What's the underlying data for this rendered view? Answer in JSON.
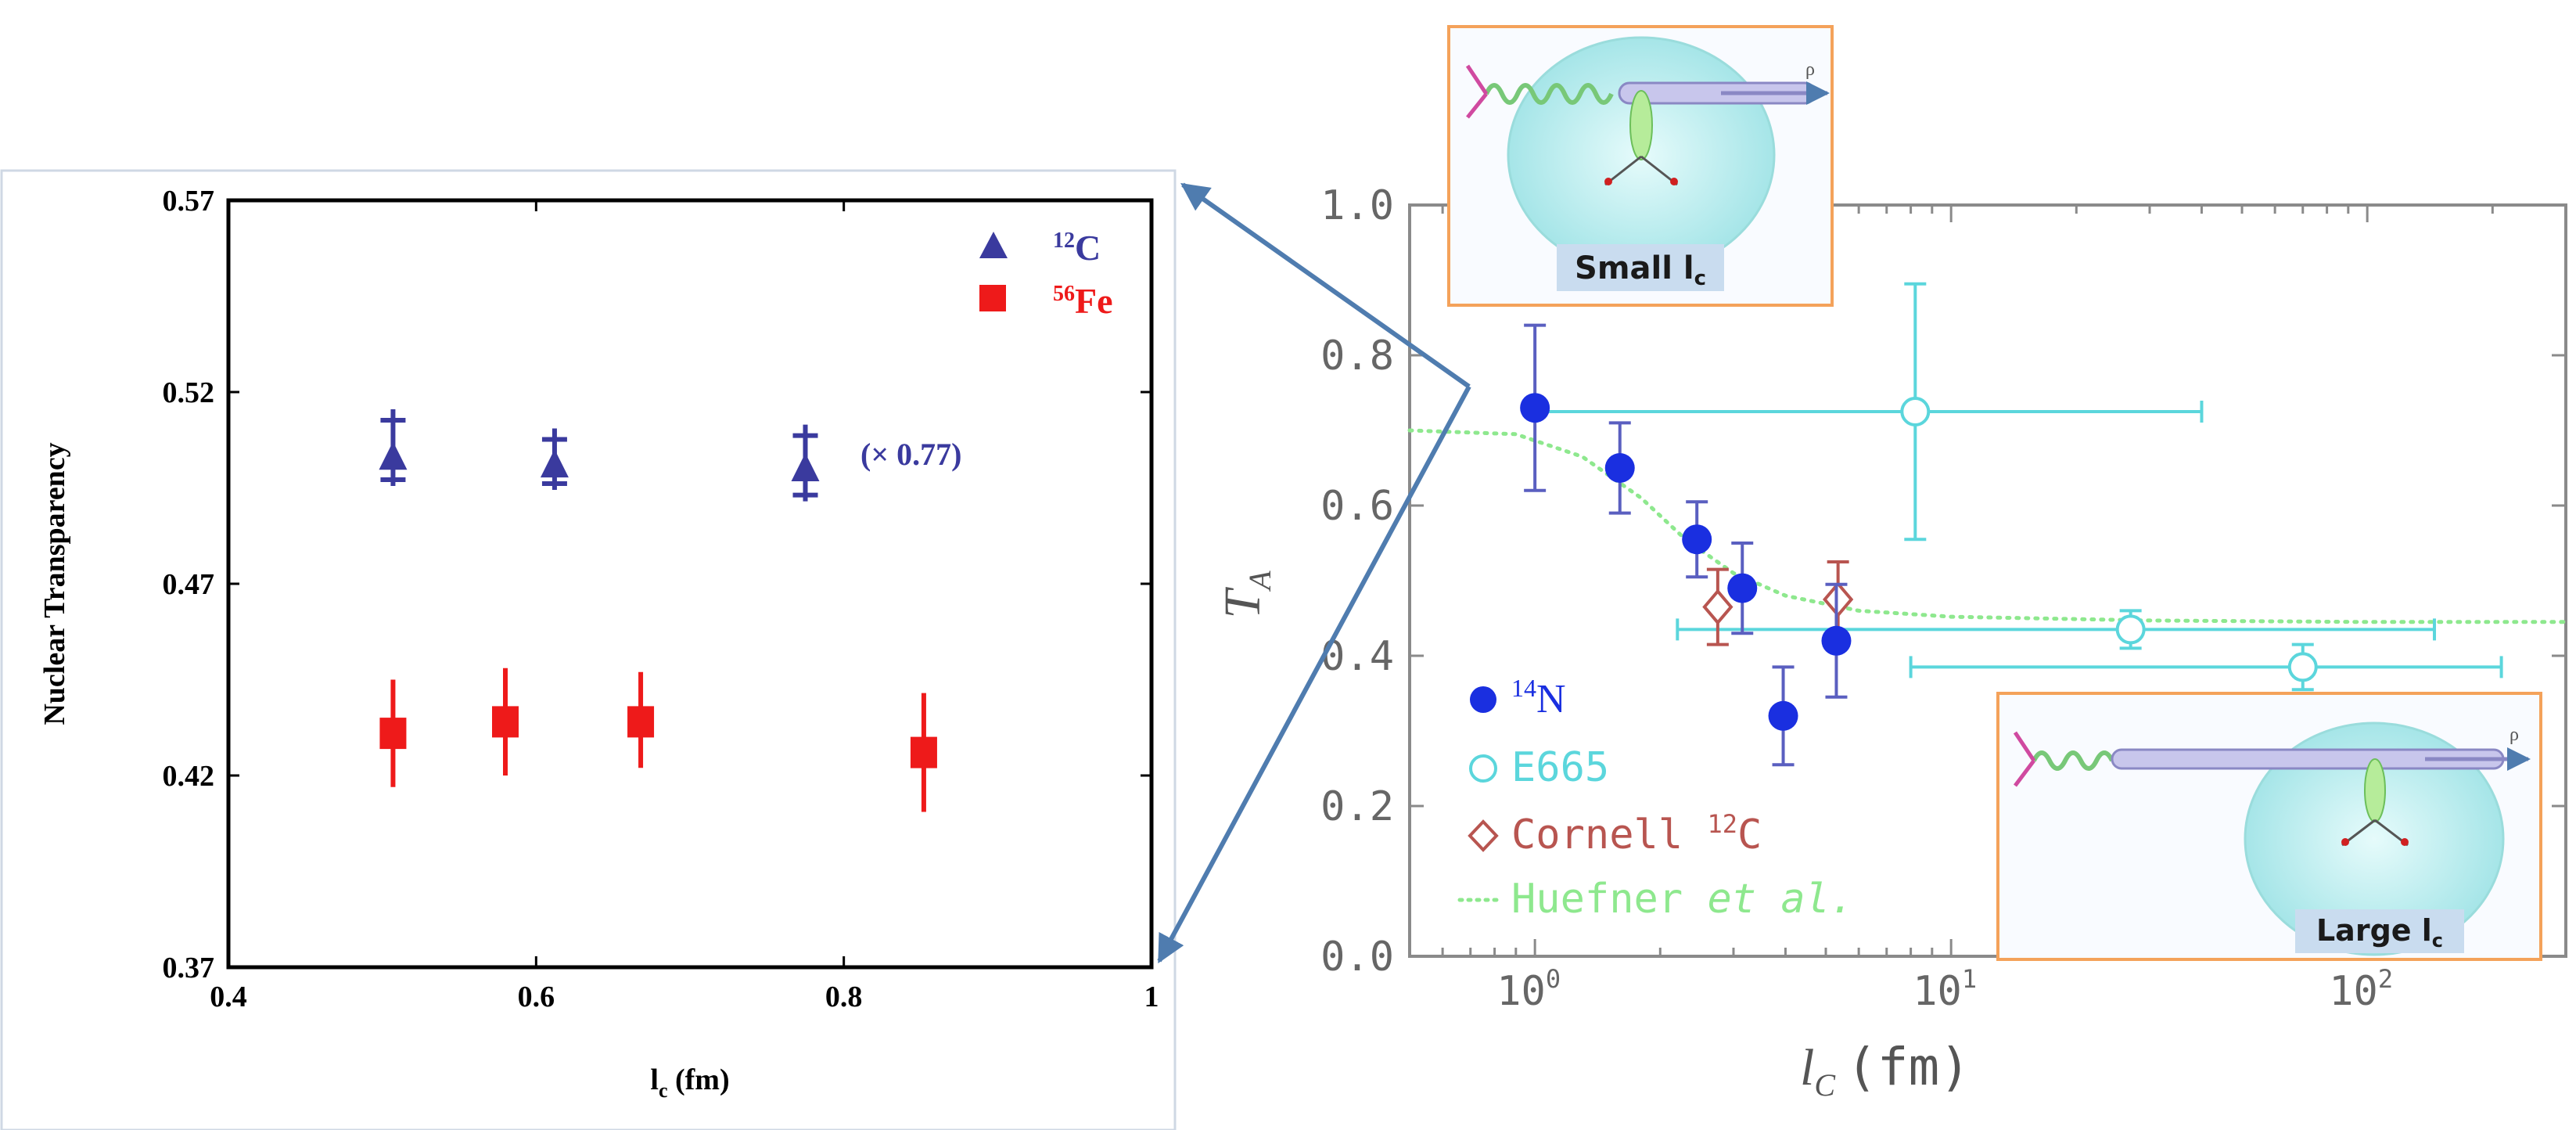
{
  "chart_data": [
    {
      "type": "scatter",
      "xlabel": "l",
      "xlabel_sub": "c",
      "xlabel_unit": " (fm)",
      "ylabel": "Nuclear Transparency",
      "xlim": [
        0.4,
        1.0
      ],
      "ylim": [
        0.37,
        0.57
      ],
      "x_ticks": [
        "0.4",
        "0.6",
        "0.8",
        "1"
      ],
      "y_ticks": [
        "0.37",
        "0.42",
        "0.47",
        "0.52",
        "0.57"
      ],
      "grid": false,
      "legend_position": "top-right",
      "annotation": "(× 0.77)",
      "series": [
        {
          "name": "12C",
          "legend_sup": "12",
          "legend_main": "C",
          "color": "#3a3a9e",
          "marker": "triangle",
          "points": [
            {
              "x": 0.507,
              "y": 0.503,
              "err_lo": 0.0075,
              "err_hi": 0.0125
            },
            {
              "x": 0.612,
              "y": 0.501,
              "err_lo": 0.0065,
              "err_hi": 0.0095
            },
            {
              "x": 0.775,
              "y": 0.5,
              "err_lo": 0.0085,
              "err_hi": 0.0115
            }
          ]
        },
        {
          "name": "56Fe",
          "legend_sup": "56",
          "legend_main": "Fe",
          "color": "#ee1a1a",
          "marker": "square",
          "points": [
            {
              "x": 0.507,
              "y": 0.431,
              "err_lo": 0.014,
              "err_hi": 0.014
            },
            {
              "x": 0.58,
              "y": 0.434,
              "err_lo": 0.014,
              "err_hi": 0.014
            },
            {
              "x": 0.668,
              "y": 0.434,
              "err_lo": 0.012,
              "err_hi": 0.013
            },
            {
              "x": 0.852,
              "y": 0.426,
              "err_lo": 0.0155,
              "err_hi": 0.0155
            }
          ]
        }
      ]
    },
    {
      "type": "scatter",
      "x_scale": "log",
      "xlabel": "l",
      "xlabel_sub": "C",
      "xlabel_unit": "(fm)",
      "ylabel": "T",
      "ylabel_sub": "A",
      "xlim": [
        0.5,
        300
      ],
      "ylim": [
        0.0,
        1.0
      ],
      "x_ticks": [
        {
          "value": 1,
          "base": "10",
          "exp": "0"
        },
        {
          "value": 10,
          "base": "10",
          "exp": "1"
        },
        {
          "value": 100,
          "base": "10",
          "exp": "2"
        }
      ],
      "y_ticks": [
        "0.0",
        "0.2",
        "0.4",
        "0.6",
        "0.8",
        "1.0"
      ],
      "grid": false,
      "legend_position": "bottom-left",
      "series": [
        {
          "name": "14N",
          "legend_sup": "14",
          "legend_main": "N",
          "color": "#1a2fe0",
          "marker": "filled-circle",
          "points": [
            {
              "x": 1.0,
              "y": 0.73,
              "y_err": 0.11
            },
            {
              "x": 1.6,
              "y": 0.65,
              "y_err": 0.06
            },
            {
              "x": 2.45,
              "y": 0.555,
              "y_err": 0.05
            },
            {
              "x": 3.15,
              "y": 0.49,
              "y_err": 0.06
            },
            {
              "x": 3.95,
              "y": 0.32,
              "y_err": 0.065
            },
            {
              "x": 5.3,
              "y": 0.42,
              "y_err": 0.075
            }
          ]
        },
        {
          "name": "E665",
          "color": "#5bd6dc",
          "marker": "open-circle",
          "points": [
            {
              "x": 8.2,
              "y": 0.725,
              "y_err": 0.17,
              "x_lo": 1.0,
              "x_hi": 40
            },
            {
              "x": 27,
              "y": 0.435,
              "y_err": 0.025,
              "x_lo": 2.2,
              "x_hi": 145
            },
            {
              "x": 70,
              "y": 0.385,
              "y_err": 0.03,
              "x_lo": 8,
              "x_hi": 210
            }
          ]
        },
        {
          "name": "Cornell 12C",
          "legend_main": "Cornell ",
          "legend_sup": "12",
          "legend_tail": "C",
          "color": "#b85550",
          "marker": "open-diamond",
          "points": [
            {
              "x": 2.75,
              "y": 0.465,
              "y_err": 0.05
            },
            {
              "x": 5.35,
              "y": 0.475,
              "y_err": 0.05
            }
          ]
        },
        {
          "name": "Huefner et al.",
          "legend_main": "Huefner ",
          "legend_italic": "et al.",
          "color": "#8ee88e",
          "line": "dotted",
          "points": [
            {
              "x": 0.5,
              "y": 0.7
            },
            {
              "x": 0.9,
              "y": 0.695
            },
            {
              "x": 1.3,
              "y": 0.665
            },
            {
              "x": 1.8,
              "y": 0.61
            },
            {
              "x": 2.3,
              "y": 0.555
            },
            {
              "x": 3.0,
              "y": 0.51
            },
            {
              "x": 4.0,
              "y": 0.48
            },
            {
              "x": 6.0,
              "y": 0.46
            },
            {
              "x": 10,
              "y": 0.452
            },
            {
              "x": 30,
              "y": 0.447
            },
            {
              "x": 100,
              "y": 0.445
            },
            {
              "x": 300,
              "y": 0.445
            }
          ]
        }
      ],
      "insets": [
        {
          "caption": "Small l",
          "caption_sub": "c",
          "particle_label": "ρ",
          "corner": "top-left"
        },
        {
          "caption": "Large l",
          "caption_sub": "c",
          "particle_label": "ρ",
          "corner": "bottom-right"
        }
      ]
    }
  ],
  "colors": {
    "arrow": "#4f7caf",
    "inset_border": "#f4a25a",
    "inset_bg": "#f9fbff",
    "nucleus_fill": "#bff0f0",
    "caption_bg": "#c9dcef"
  }
}
